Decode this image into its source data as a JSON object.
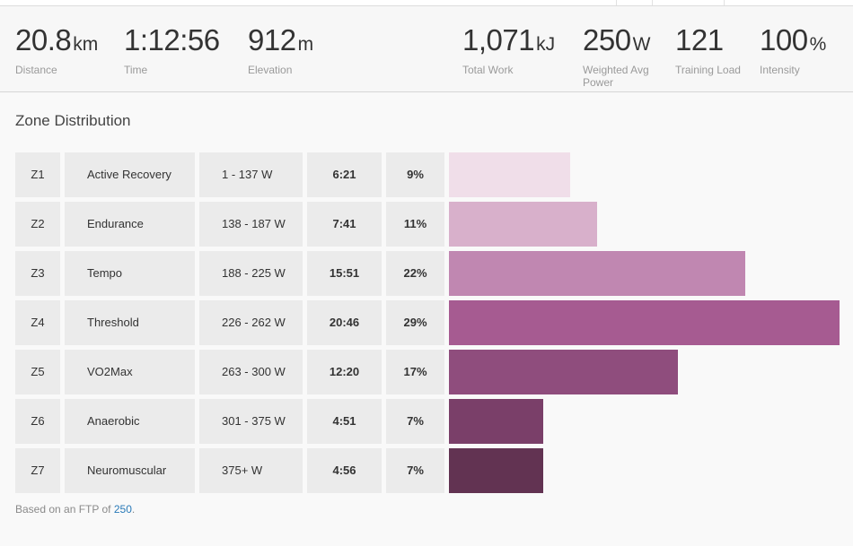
{
  "stats": [
    {
      "value": "20.8",
      "unit": "km",
      "label": "Distance"
    },
    {
      "value": "1:12:56",
      "unit": "",
      "label": "Time"
    },
    {
      "value": "912",
      "unit": "m",
      "label": "Elevation"
    },
    {
      "value": "1,071",
      "unit": "kJ",
      "label": "Total Work"
    },
    {
      "value": "250",
      "unit": "W",
      "label": "Weighted Avg Power"
    },
    {
      "value": "121",
      "unit": "",
      "label": "Training Load"
    },
    {
      "value": "100",
      "unit": "%",
      "label": "Intensity"
    }
  ],
  "zone_distribution": {
    "title": "Zone Distribution",
    "zones": [
      {
        "zone": "Z1",
        "name": "Active Recovery",
        "range": "1 - 137 W",
        "time": "6:21",
        "percent": "9%",
        "share": 0.09,
        "color": "#f0dee9"
      },
      {
        "zone": "Z2",
        "name": "Endurance",
        "range": "138 - 187 W",
        "time": "7:41",
        "percent": "11%",
        "share": 0.11,
        "color": "#d8b0cb"
      },
      {
        "zone": "Z3",
        "name": "Tempo",
        "range": "188 - 225 W",
        "time": "15:51",
        "percent": "22%",
        "share": 0.22,
        "color": "#c087b1"
      },
      {
        "zone": "Z4",
        "name": "Threshold",
        "range": "226 - 262 W",
        "time": "20:46",
        "percent": "29%",
        "share": 0.29,
        "color": "#a65b91"
      },
      {
        "zone": "Z5",
        "name": "VO2Max",
        "range": "263 - 300 W",
        "time": "12:20",
        "percent": "17%",
        "share": 0.17,
        "color": "#8f4d7d"
      },
      {
        "zone": "Z6",
        "name": "Anaerobic",
        "range": "301 - 375 W",
        "time": "4:51",
        "percent": "7%",
        "share": 0.07,
        "color": "#7a3f69"
      },
      {
        "zone": "Z7",
        "name": "Neuromuscular",
        "range": "375+ W",
        "time": "4:56",
        "percent": "7%",
        "share": 0.07,
        "color": "#623352"
      }
    ]
  },
  "footnote": {
    "prefix": "Based on an FTP of ",
    "ftp": "250",
    "suffix": "."
  }
}
